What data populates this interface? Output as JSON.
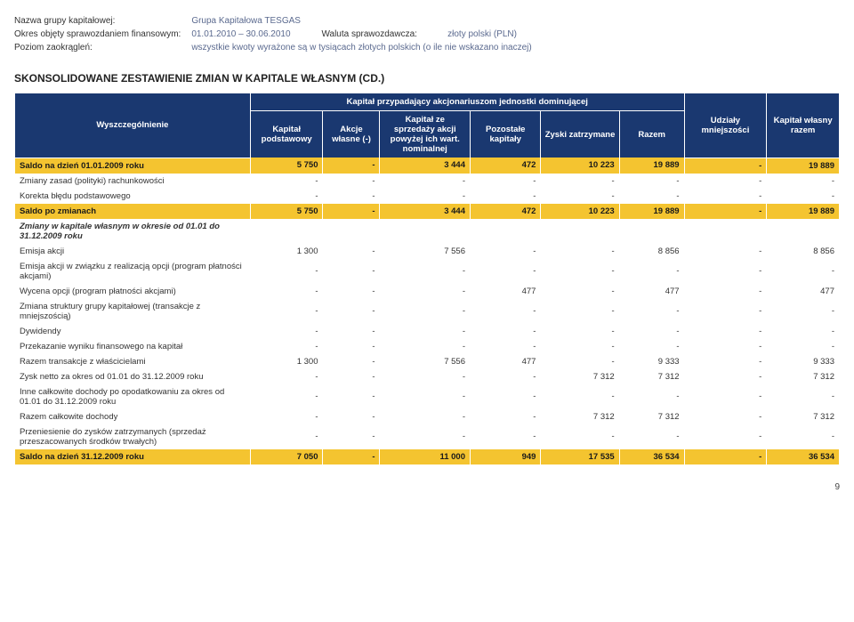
{
  "header": {
    "rows": [
      {
        "label": "Nazwa grupy kapitałowej:",
        "value": "Grupa Kapitałowa TESGAS"
      },
      {
        "label": "Okres objęty sprawozdaniem finansowym:",
        "value": "01.01.2010 – 30.06.2010",
        "label2": "Waluta sprawozdawcza:",
        "value2": "złoty polski (PLN)"
      },
      {
        "label": "Poziom zaokrągleń:",
        "value": "wszystkie kwoty wyrażone są w tysiącach złotych polskich (o ile nie wskazano inaczej)"
      }
    ]
  },
  "title": "SKONSOLIDOWANE ZESTAWIENIE ZMIAN W KAPITALE WŁASNYM (CD.)",
  "groupHeader": "Kapitał przypadający akcjonariuszom jednostki dominującej",
  "columns": {
    "rowhead": "Wyszczególnienie",
    "c1": "Kapitał podstawowy",
    "c2": "Akcje własne (-)",
    "c3": "Kapitał ze sprzedaży akcji powyżej ich wart. nominalnej",
    "c4": "Pozostałe kapitały",
    "c5": "Zyski zatrzymane",
    "c6": "Razem",
    "c7": "Udziały mniejszości",
    "c8": "Kapitał własny razem"
  },
  "rows": [
    {
      "class": "yellow",
      "label": "Saldo na dzień 01.01.2009 roku",
      "v": [
        "5 750",
        "-",
        "3 444",
        "472",
        "10 223",
        "19 889",
        "-",
        "19 889"
      ]
    },
    {
      "class": "light",
      "label": "Zmiany zasad (polityki) rachunkowości",
      "v": [
        "-",
        "-",
        "-",
        "-",
        "-",
        "-",
        "-",
        "-"
      ]
    },
    {
      "class": "light",
      "label": "Korekta błędu podstawowego",
      "v": [
        "-",
        "-",
        "-",
        "-",
        "-",
        "-",
        "-",
        "-"
      ]
    },
    {
      "class": "yellow",
      "label": "Saldo po zmianach",
      "v": [
        "5 750",
        "-",
        "3 444",
        "472",
        "10 223",
        "19 889",
        "-",
        "19 889"
      ]
    },
    {
      "class": "bolditalic",
      "label": "Zmiany w kapitale własnym w okresie od 01.01 do 31.12.2009 roku",
      "v": [
        "",
        "",
        "",
        "",
        "",
        "",
        "",
        ""
      ]
    },
    {
      "class": "light",
      "label": "Emisja akcji",
      "v": [
        "1 300",
        "-",
        "7 556",
        "-",
        "-",
        "8 856",
        "-",
        "8 856"
      ]
    },
    {
      "class": "light",
      "label": "Emisja akcji w związku z realizacją opcji (program płatności akcjami)",
      "v": [
        "-",
        "-",
        "-",
        "-",
        "-",
        "-",
        "-",
        "-"
      ]
    },
    {
      "class": "light",
      "label": "Wycena opcji (program płatności akcjami)",
      "v": [
        "-",
        "-",
        "-",
        "477",
        "-",
        "477",
        "-",
        "477"
      ]
    },
    {
      "class": "light",
      "label": "Zmiana struktury grupy kapitałowej (transakcje z mniejszością)",
      "v": [
        "-",
        "-",
        "-",
        "-",
        "-",
        "-",
        "-",
        "-"
      ]
    },
    {
      "class": "light",
      "label": "Dywidendy",
      "v": [
        "-",
        "-",
        "-",
        "-",
        "-",
        "-",
        "-",
        "-"
      ]
    },
    {
      "class": "light",
      "label": "Przekazanie wyniku finansowego na kapitał",
      "v": [
        "-",
        "-",
        "-",
        "-",
        "-",
        "-",
        "-",
        "-"
      ]
    },
    {
      "class": "light",
      "label": "Razem transakcje z właścicielami",
      "v": [
        "1 300",
        "-",
        "7 556",
        "477",
        "-",
        "9 333",
        "-",
        "9 333"
      ]
    },
    {
      "class": "light",
      "label": "Zysk netto za okres od 01.01 do 31.12.2009 roku",
      "v": [
        "-",
        "-",
        "-",
        "-",
        "7 312",
        "7 312",
        "-",
        "7 312"
      ]
    },
    {
      "class": "light",
      "label": "Inne całkowite dochody po opodatkowaniu za okres od 01.01 do 31.12.2009 roku",
      "v": [
        "-",
        "-",
        "-",
        "-",
        "-",
        "-",
        "-",
        "-"
      ]
    },
    {
      "class": "light",
      "label": "Razem całkowite dochody",
      "v": [
        "-",
        "-",
        "-",
        "-",
        "7 312",
        "7 312",
        "-",
        "7 312"
      ]
    },
    {
      "class": "light",
      "label": "Przeniesienie do zysków zatrzymanych (sprzedaż przeszacowanych środków trwałych)",
      "v": [
        "-",
        "-",
        "-",
        "-",
        "-",
        "-",
        "-",
        "-"
      ]
    },
    {
      "class": "yellow",
      "label": "Saldo na dzień 31.12.2009 roku",
      "v": [
        "7 050",
        "-",
        "11 000",
        "949",
        "17 535",
        "36 534",
        "-",
        "36 534"
      ]
    }
  ],
  "pageNumber": "9"
}
